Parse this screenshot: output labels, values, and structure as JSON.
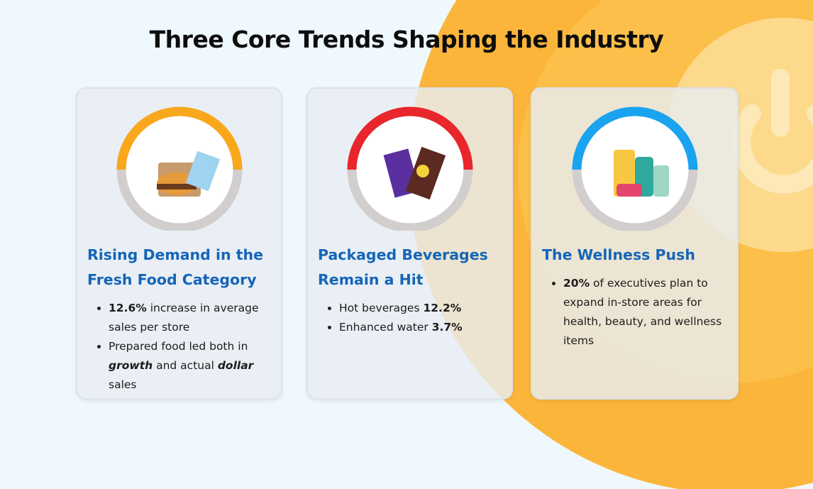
{
  "title": "Three Core Trends Shaping the Industry",
  "cards": [
    {
      "heading": "Rising Demand in the Fresh Food Category",
      "ring_color": "#f9a71b",
      "bullets": [
        [
          {
            "text": "12.6%",
            "style": "bold"
          },
          {
            "text": " increase in average sales per store"
          }
        ],
        [
          {
            "text": "Prepared food led both in "
          },
          {
            "text": "growth",
            "style": "bold-italic"
          },
          {
            "text": " and actual "
          },
          {
            "text": "dollar",
            "style": "bold-italic"
          },
          {
            "text": " sales"
          }
        ]
      ]
    },
    {
      "heading": "Packaged Beverages Remain a Hit",
      "ring_color": "#e8262b",
      "bullets": [
        [
          {
            "text": "Hot beverages "
          },
          {
            "text": "12.2%",
            "style": "bold"
          }
        ],
        [
          {
            "text": "Enhanced water "
          },
          {
            "text": "3.7%",
            "style": "bold"
          }
        ]
      ]
    },
    {
      "heading": "The Wellness Push",
      "ring_color": "#1aa3ef",
      "bullets": [
        [
          {
            "text": "20%",
            "style": "bold"
          },
          {
            "text": " of executives plan to expand in-store areas for health, beauty, and wellness items"
          }
        ]
      ]
    }
  ]
}
